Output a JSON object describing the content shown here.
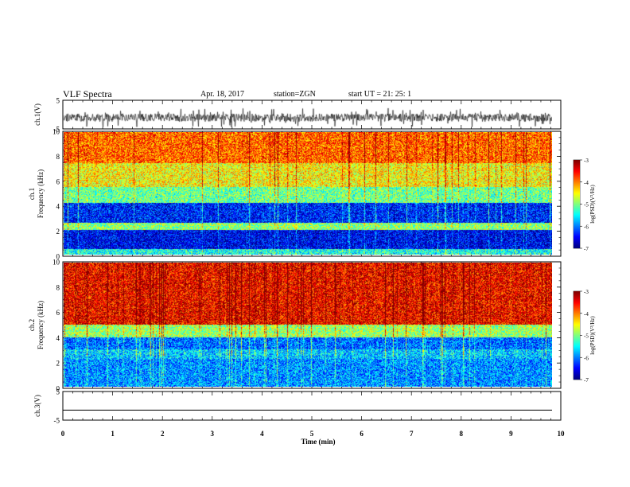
{
  "header": {
    "title": "VLF Spectra",
    "date": "Apr. 18, 2017",
    "station": "station=ZGN",
    "start": "start  UT =   21: 25: 1"
  },
  "colors": {
    "trace": "#000000",
    "colormap": [
      "#00007f",
      "#0000ff",
      "#00ffff",
      "#00ff00",
      "#ffff00",
      "#ff7f00",
      "#ff0000",
      "#ffffff"
    ]
  },
  "chart_data": [
    {
      "type": "line",
      "ylabel": "ch.1(V)",
      "ylim": [
        -5,
        5
      ],
      "yticks": [
        "5",
        "-5"
      ],
      "description_of_trace": "noisy waveform centered near -1"
    },
    {
      "type": "heatmap",
      "ylabel": "ch.1\nFrequency (kHz)",
      "ylim": [
        0,
        10
      ],
      "yticks": [
        "0",
        "2",
        "4",
        "6",
        "8",
        "10"
      ],
      "colorbar": {
        "label": "log(PSD)(V²/Hz)",
        "ticks": [
          "-3",
          "-4",
          "-5",
          "-6",
          "-7"
        ],
        "range": [
          -7,
          -3
        ]
      },
      "bands": [
        {
          "from": 0,
          "to": 0.4,
          "level": -5.5
        },
        {
          "from": 0.4,
          "to": 2.0,
          "level": -6.6
        },
        {
          "from": 2.0,
          "to": 2.6,
          "level": -5.0
        },
        {
          "from": 2.6,
          "to": 4.2,
          "level": -6.5
        },
        {
          "from": 4.2,
          "to": 5.5,
          "level": -5.2
        },
        {
          "from": 5.5,
          "to": 7.5,
          "level": -4.6
        },
        {
          "from": 7.5,
          "to": 10,
          "level": -4.0
        }
      ]
    },
    {
      "type": "heatmap",
      "ylabel": "ch.2\nFrequency (kHz)",
      "ylim": [
        0,
        10
      ],
      "yticks": [
        "0",
        "2",
        "4",
        "6",
        "8",
        "10"
      ],
      "colorbar": {
        "label": "log(PSD)(V²/Hz)",
        "ticks": [
          "-3",
          "-4",
          "-5",
          "-6",
          "-7"
        ],
        "range": [
          -7,
          -3
        ]
      },
      "bands": [
        {
          "from": 0,
          "to": 2.2,
          "level": -6.0
        },
        {
          "from": 2.2,
          "to": 3.0,
          "level": -5.8
        },
        {
          "from": 3.0,
          "to": 4.0,
          "level": -6.2
        },
        {
          "from": 4.0,
          "to": 5.0,
          "level": -5.0
        },
        {
          "from": 5.0,
          "to": 10,
          "level": -3.6
        }
      ]
    },
    {
      "type": "line",
      "ylabel": "ch.3(V)",
      "ylim": [
        -5,
        5
      ],
      "yticks": [
        "5",
        "-5"
      ],
      "constant_value": -1.5
    }
  ],
  "xaxis": {
    "label": "Time (min)",
    "range": [
      0,
      10
    ],
    "ticks": [
      "0",
      "1",
      "2",
      "3",
      "4",
      "5",
      "6",
      "7",
      "8",
      "9",
      "10"
    ]
  }
}
